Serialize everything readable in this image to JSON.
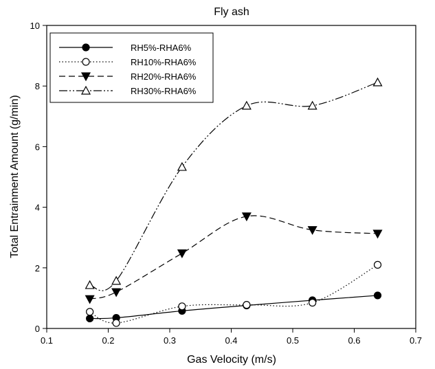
{
  "chart_data": {
    "type": "line",
    "title": "Fly ash",
    "xlabel": "Gas Velocity (m/s)",
    "ylabel": "Total Entrainment Amount (g/min)",
    "xlim": [
      0.1,
      0.7
    ],
    "ylim": [
      0,
      10
    ],
    "xticks": [
      "0.1",
      "0.2",
      "0.3",
      "0.4",
      "0.5",
      "0.6",
      "0.7"
    ],
    "yticks": [
      "0",
      "2",
      "4",
      "6",
      "8",
      "10"
    ],
    "grid": false,
    "legend_position": "top-left",
    "series": [
      {
        "name": "RH5%-RHA6%",
        "marker": "filled-circle",
        "line_style": "solid",
        "x": [
          0.17,
          0.213,
          0.32,
          0.425,
          0.532,
          0.638
        ],
        "y": [
          0.33,
          0.35,
          0.58,
          0.76,
          0.93,
          1.09
        ]
      },
      {
        "name": "RH10%-RHA6%",
        "marker": "open-circle",
        "line_style": "dotted",
        "x": [
          0.17,
          0.213,
          0.32,
          0.425,
          0.532,
          0.638
        ],
        "y": [
          0.55,
          0.18,
          0.73,
          0.78,
          0.85,
          2.1
        ]
      },
      {
        "name": "RH20%-RHA6%",
        "marker": "filled-triangle-down",
        "line_style": "dashed",
        "x": [
          0.17,
          0.213,
          0.32,
          0.425,
          0.532,
          0.638
        ],
        "y": [
          0.97,
          1.2,
          2.48,
          3.7,
          3.25,
          3.13
        ]
      },
      {
        "name": "RH30%-RHA6%",
        "marker": "open-triangle-up",
        "line_style": "dash-dot-dot",
        "x": [
          0.17,
          0.213,
          0.32,
          0.425,
          0.532,
          0.638
        ],
        "y": [
          1.43,
          1.57,
          5.33,
          7.35,
          7.35,
          8.12
        ]
      }
    ]
  }
}
